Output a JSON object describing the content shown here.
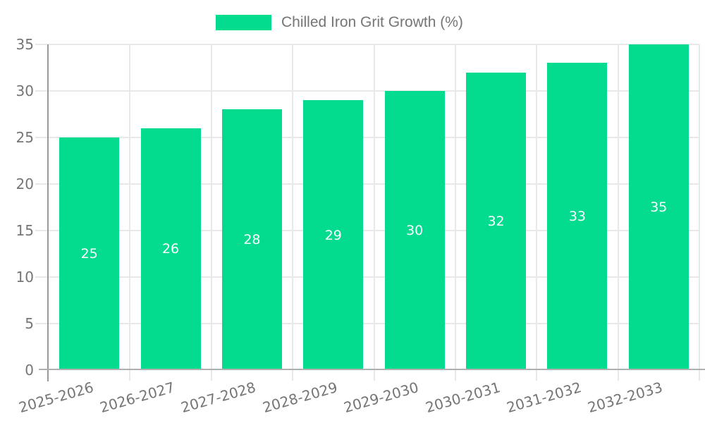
{
  "chart_data": {
    "type": "bar",
    "title": "Chilled Iron Grit Growth (%)",
    "legend": {
      "label": "Chilled Iron Grit Growth (%)",
      "position": "top-center"
    },
    "categories": [
      "2025-2026",
      "2026-2027",
      "2027-2028",
      "2028-2029",
      "2029-2030",
      "2030-2031",
      "2031-2032",
      "2032-2033"
    ],
    "series": [
      {
        "name": "Chilled Iron Grit Growth (%)",
        "values": [
          25,
          26,
          28,
          29,
          30,
          32,
          33,
          35
        ]
      }
    ],
    "data_labels_shown": true,
    "xlabel": "",
    "ylabel": "",
    "y_ticks": [
      0,
      5,
      10,
      15,
      20,
      25,
      30,
      35
    ],
    "ylim": [
      0,
      35
    ],
    "grid": "horizontal-and-vertical",
    "x_tick_rotation_deg": -16,
    "colors": {
      "bar": "#03dc8f",
      "grid": "#e8e8e8",
      "axis": "#9a9a9a",
      "baseline": "#b0b0b0",
      "tick_text": "#757575",
      "data_label": "#ffffff",
      "background": "#ffffff"
    }
  }
}
